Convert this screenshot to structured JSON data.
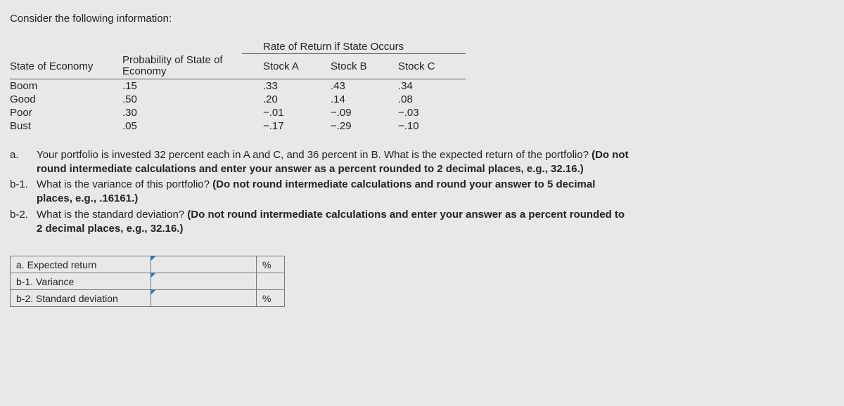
{
  "intro": "Consider the following information:",
  "table": {
    "spanner": "Rate of Return if State Occurs",
    "headers": {
      "state": "State of Economy",
      "prob": "Probability of State of Economy",
      "a": "Stock A",
      "b": "Stock B",
      "c": "Stock C"
    },
    "rows": [
      {
        "state": "Boom",
        "prob": ".15",
        "a": ".33",
        "b": ".43",
        "c": ".34"
      },
      {
        "state": "Good",
        "prob": ".50",
        "a": ".20",
        "b": ".14",
        "c": ".08"
      },
      {
        "state": "Poor",
        "prob": ".30",
        "a": "−.01",
        "b": "−.09",
        "c": "−.03"
      },
      {
        "state": "Bust",
        "prob": ".05",
        "a": "−.17",
        "b": "−.29",
        "c": "−.10"
      }
    ]
  },
  "questions": {
    "a_label": "a.",
    "a_text1": "Your portfolio is invested 32 percent each in A and C, and 36 percent in B. What is the expected return of the portfolio? ",
    "a_bold": "(Do not round intermediate calculations and enter your answer as a percent rounded to 2 decimal places, e.g., 32.16.)",
    "b1_label": "b-1.",
    "b1_text1": "What is the variance of this portfolio? ",
    "b1_bold": "(Do not round intermediate calculations and round your answer to 5 decimal places, e.g., .16161.)",
    "b2_label": "b-2.",
    "b2_text1": "What is the standard deviation? ",
    "b2_bold": "(Do not round intermediate calculations and enter your answer as a percent rounded to 2 decimal places, e.g., 32.16.)"
  },
  "answers": {
    "a_label": "a. Expected return",
    "a_unit": "%",
    "b1_label": "b-1. Variance",
    "b1_unit": "",
    "b2_label": "b-2. Standard deviation",
    "b2_unit": "%"
  }
}
